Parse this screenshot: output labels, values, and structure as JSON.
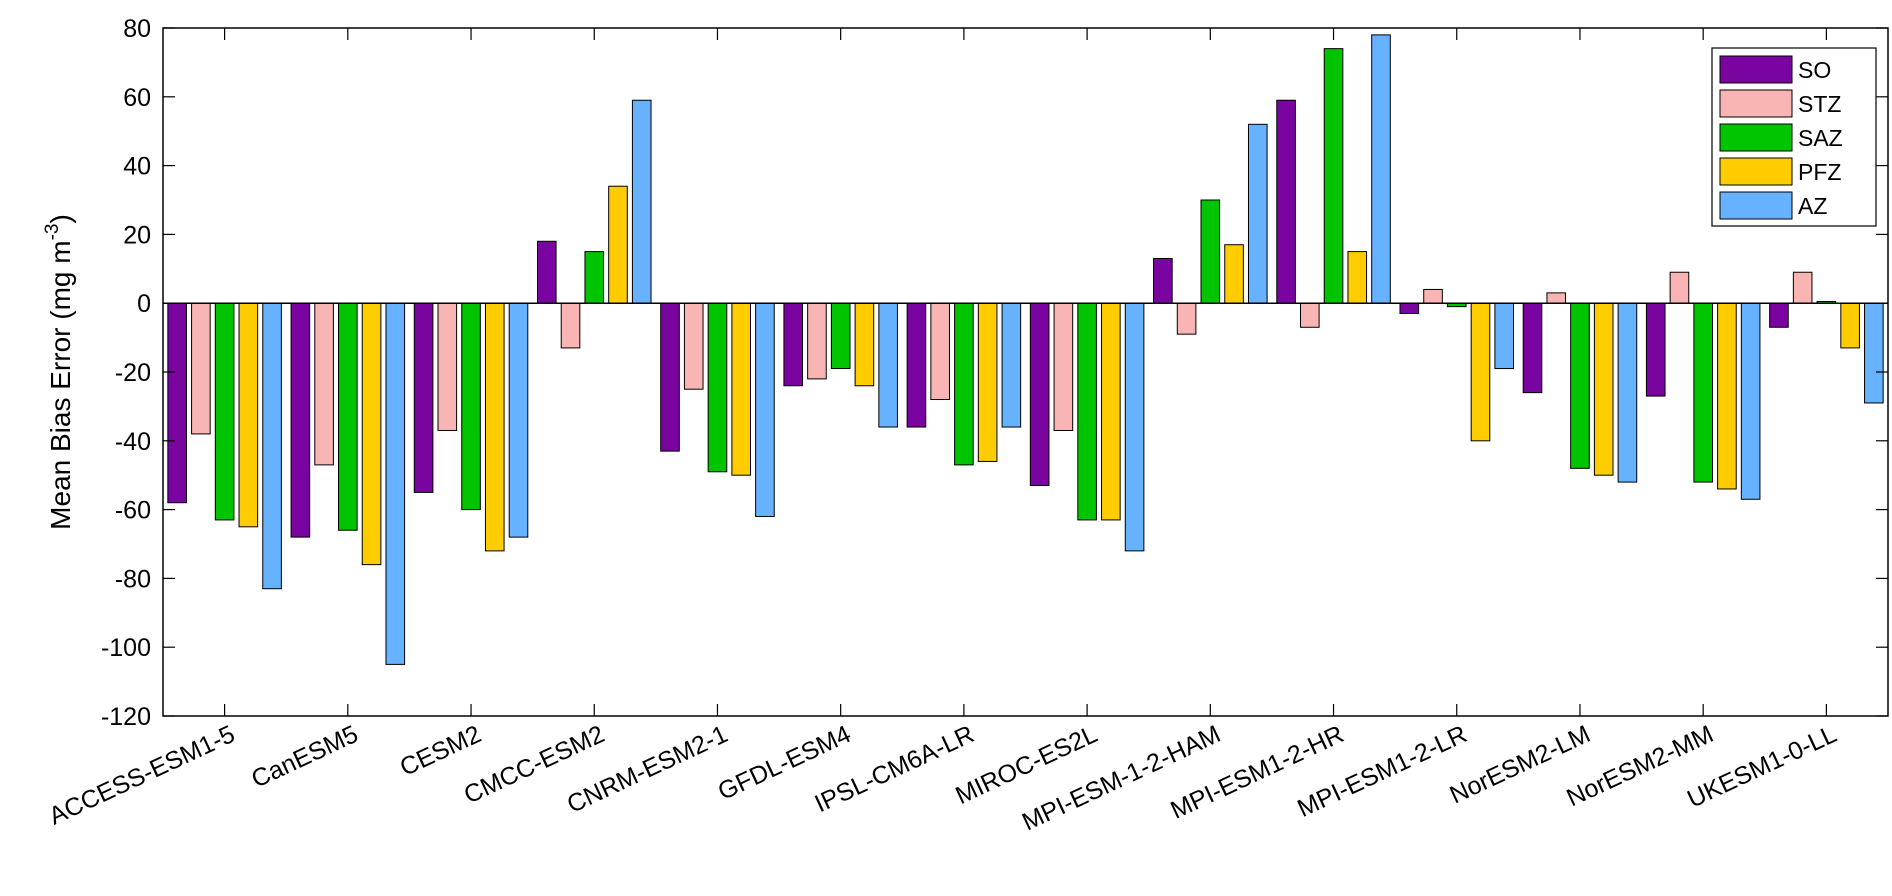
{
  "chart_data": {
    "type": "bar",
    "ylabel": "Mean Bias Error (mg m",
    "ylabel_unit_exponent": "-3",
    "ylabel_close": ")",
    "ylim": [
      -120,
      80
    ],
    "yticks": [
      80,
      60,
      40,
      20,
      0,
      -20,
      -40,
      -60,
      -80,
      -100,
      -120
    ],
    "ytick_labels": [
      "80",
      "60",
      "40",
      "20",
      "0",
      "-20",
      "-40",
      "-60",
      "-80",
      "-100",
      "-120"
    ],
    "grid": false,
    "legend_position": "top-right",
    "categories": [
      "ACCESS-ESM1-5",
      "CanESM5",
      "CESM2",
      "CMCC-ESM2",
      "CNRM-ESM2-1",
      "GFDL-ESM4",
      "IPSL-CM6A-LR",
      "MIROC-ES2L",
      "MPI-ESM-1-2-HAM",
      "MPI-ESM1-2-HR",
      "MPI-ESM1-2-LR",
      "NorESM2-LM",
      "NorESM2-MM",
      "UKESM1-0-LL"
    ],
    "series": [
      {
        "name": "SO",
        "color": "#7a04a0",
        "values": [
          -58,
          -68,
          -55,
          18,
          -43,
          -24,
          -36,
          -53,
          13,
          59,
          -3,
          -26,
          -27,
          -7
        ]
      },
      {
        "name": "STZ",
        "color": "#f9b5b3",
        "values": [
          -38,
          -47,
          -37,
          -13,
          -25,
          -22,
          -28,
          -37,
          -9,
          -7,
          4,
          3,
          9,
          9
        ]
      },
      {
        "name": "SAZ",
        "color": "#00c400",
        "values": [
          -63,
          -66,
          -60,
          15,
          -49,
          -19,
          -47,
          -63,
          30,
          74,
          -1,
          -48,
          -52,
          0.5
        ]
      },
      {
        "name": "PFZ",
        "color": "#ffcc00",
        "values": [
          -65,
          -76,
          -72,
          34,
          -50,
          -24,
          -46,
          -63,
          17,
          15,
          -40,
          -50,
          -54,
          -13
        ]
      },
      {
        "name": "AZ",
        "color": "#66b2ff",
        "values": [
          -83,
          -105,
          -68,
          59,
          -62,
          -36,
          -36,
          -72,
          52,
          78,
          -19,
          -52,
          -57,
          -29
        ]
      }
    ]
  }
}
